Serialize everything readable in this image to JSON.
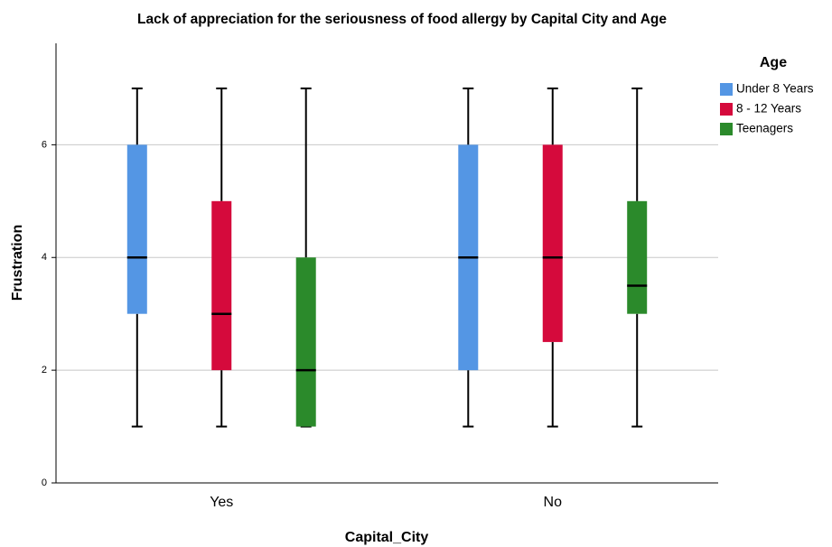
{
  "chart_data": {
    "type": "box",
    "title": "Lack of appreciation for the seriousness of food allergy by Capital City and Age",
    "x_label": "Capital_City",
    "y_label": "Frustration",
    "categories": [
      "Yes",
      "No"
    ],
    "legend_title": "Age",
    "legend": "upper right",
    "series": [
      {
        "name": "Under 8 Years",
        "color": "#5496e4",
        "values": [
          {
            "min": 1,
            "q1": 3,
            "median": 4,
            "q3": 6,
            "max": 7
          },
          {
            "min": 1,
            "q1": 2,
            "median": 4,
            "q3": 6,
            "max": 7
          }
        ]
      },
      {
        "name": "8 - 12 Years",
        "color": "#d50a3c",
        "values": [
          {
            "min": 1,
            "q1": 2,
            "median": 3,
            "q3": 5,
            "max": 7
          },
          {
            "min": 1,
            "q1": 2.5,
            "median": 4,
            "q3": 6,
            "max": 7
          }
        ]
      },
      {
        "name": "Teenagers",
        "color": "#2b8a2b",
        "values": [
          {
            "min": 1,
            "q1": 1,
            "median": 2,
            "q3": 4,
            "max": 7
          },
          {
            "min": 1,
            "q1": 3,
            "median": 3.5,
            "q3": 5,
            "max": 7
          }
        ]
      }
    ],
    "ylim": [
      0,
      7.8
    ],
    "yticks": [
      0,
      2,
      4,
      6
    ],
    "grid": true
  }
}
